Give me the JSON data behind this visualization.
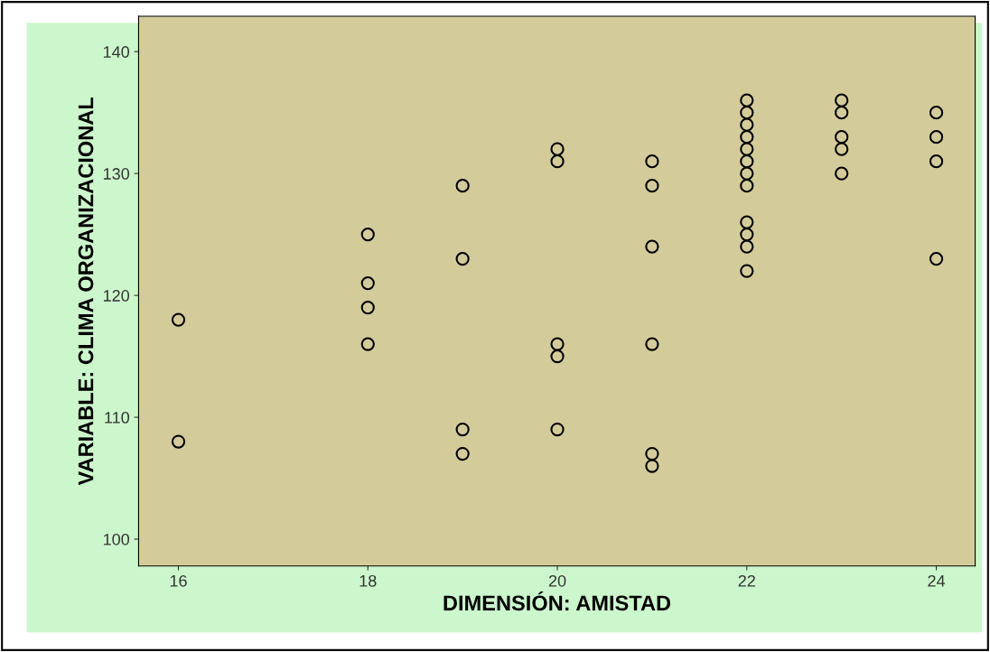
{
  "chart_data": {
    "type": "scatter",
    "xlabel": "DIMENSIÓN: AMISTAD",
    "ylabel": "VARIABLE: CLIMA ORGANIZACIONAL",
    "xlim": [
      15.58,
      24.41
    ],
    "ylim": [
      97.8,
      142.9
    ],
    "xticks": [
      16,
      18,
      20,
      22,
      24
    ],
    "yticks": [
      100,
      110,
      120,
      130,
      140
    ],
    "marker": "circle",
    "grid": false,
    "legend": false,
    "series": [
      {
        "color": "#000000",
        "x": [
          16,
          16,
          18,
          18,
          18,
          18,
          19,
          19,
          19,
          19,
          20,
          20,
          20,
          20,
          20,
          21,
          21,
          21,
          21,
          21,
          21,
          22,
          22,
          22,
          22,
          22,
          22,
          22,
          22,
          22,
          22,
          22,
          22,
          23,
          23,
          23,
          23,
          23,
          24,
          24,
          24,
          24
        ],
        "values": [
          118,
          108,
          125,
          121,
          119,
          116,
          129,
          123,
          109,
          107,
          132,
          131,
          116,
          115,
          109,
          131,
          129,
          124,
          116,
          107,
          106,
          136,
          135,
          134,
          133,
          132,
          131,
          130,
          129,
          126,
          125,
          124,
          122,
          136,
          135,
          133,
          132,
          130,
          135,
          133,
          131,
          123
        ]
      }
    ]
  }
}
